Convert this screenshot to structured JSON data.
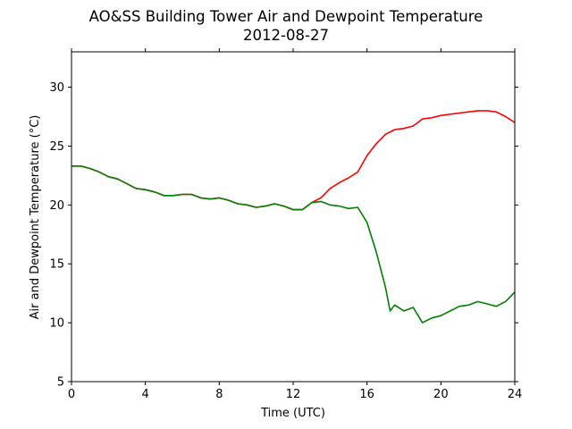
{
  "chart_data": {
    "type": "line",
    "title": "AO&SS Building Tower Air and Dewpoint Temperature",
    "subtitle": "2012-08-27",
    "xlabel": "Time (UTC)",
    "ylabel": "Air and Dewpoint Temperature (°C)",
    "xlim": [
      0,
      24
    ],
    "ylim": [
      5,
      33
    ],
    "x_ticks": [
      0,
      4,
      8,
      12,
      16,
      20,
      24
    ],
    "x_tick_labels": [
      "0",
      "4",
      "8",
      "12",
      "16",
      "20",
      "24"
    ],
    "y_ticks": [
      5,
      10,
      15,
      20,
      25,
      30
    ],
    "y_tick_labels": [
      "5",
      "10",
      "15",
      "20",
      "25",
      "30"
    ],
    "grid": false,
    "series": [
      {
        "color": "#ff0000",
        "x": [
          0,
          0.5,
          1,
          1.5,
          2,
          2.5,
          3,
          3.5,
          4,
          4.5,
          5,
          5.5,
          6,
          6.5,
          7,
          7.5,
          8,
          8.5,
          9,
          9.5,
          10,
          10.5,
          11,
          11.5,
          12,
          12.5,
          13,
          13.5,
          14,
          14.5,
          15,
          15.5,
          16,
          16.5,
          17,
          17.5,
          18,
          18.5,
          19,
          19.5,
          20,
          20.5,
          21,
          21.5,
          22,
          22.5,
          23,
          23.5,
          24
        ],
        "values": [
          23.3,
          23.3,
          23.1,
          22.8,
          22.4,
          22.2,
          21.8,
          21.4,
          21.3,
          21.1,
          20.8,
          20.8,
          20.9,
          20.9,
          20.6,
          20.5,
          20.6,
          20.4,
          20.1,
          20.0,
          19.8,
          19.9,
          20.1,
          19.9,
          19.6,
          19.6,
          20.2,
          20.6,
          21.4,
          21.9,
          22.3,
          22.8,
          24.2,
          25.2,
          26.0,
          26.4,
          26.5,
          26.7,
          27.3,
          27.4,
          27.6,
          27.7,
          27.8,
          27.9,
          28.0,
          28.0,
          27.9,
          27.5,
          27.0
        ]
      },
      {
        "color": "#008000",
        "x": [
          0,
          0.5,
          1,
          1.5,
          2,
          2.5,
          3,
          3.5,
          4,
          4.5,
          5,
          5.5,
          6,
          6.5,
          7,
          7.5,
          8,
          8.5,
          9,
          9.5,
          10,
          10.5,
          11,
          11.5,
          12,
          12.5,
          13,
          13.5,
          14,
          14.5,
          15,
          15.5,
          16,
          16.5,
          17,
          17.25,
          17.5,
          18,
          18.5,
          19,
          19.5,
          20,
          20.5,
          21,
          21.5,
          22,
          22.5,
          23,
          23.5,
          24
        ],
        "values": [
          23.3,
          23.3,
          23.1,
          22.8,
          22.4,
          22.2,
          21.8,
          21.4,
          21.3,
          21.1,
          20.8,
          20.8,
          20.9,
          20.9,
          20.6,
          20.5,
          20.6,
          20.4,
          20.1,
          20.0,
          19.8,
          19.9,
          20.1,
          19.9,
          19.6,
          19.6,
          20.2,
          20.3,
          20.0,
          19.9,
          19.7,
          19.8,
          18.5,
          16.0,
          13.0,
          11.0,
          11.5,
          11.0,
          11.3,
          10.0,
          10.4,
          10.6,
          11.0,
          11.4,
          11.5,
          11.8,
          11.6,
          11.4,
          11.8,
          12.6
        ]
      }
    ]
  }
}
